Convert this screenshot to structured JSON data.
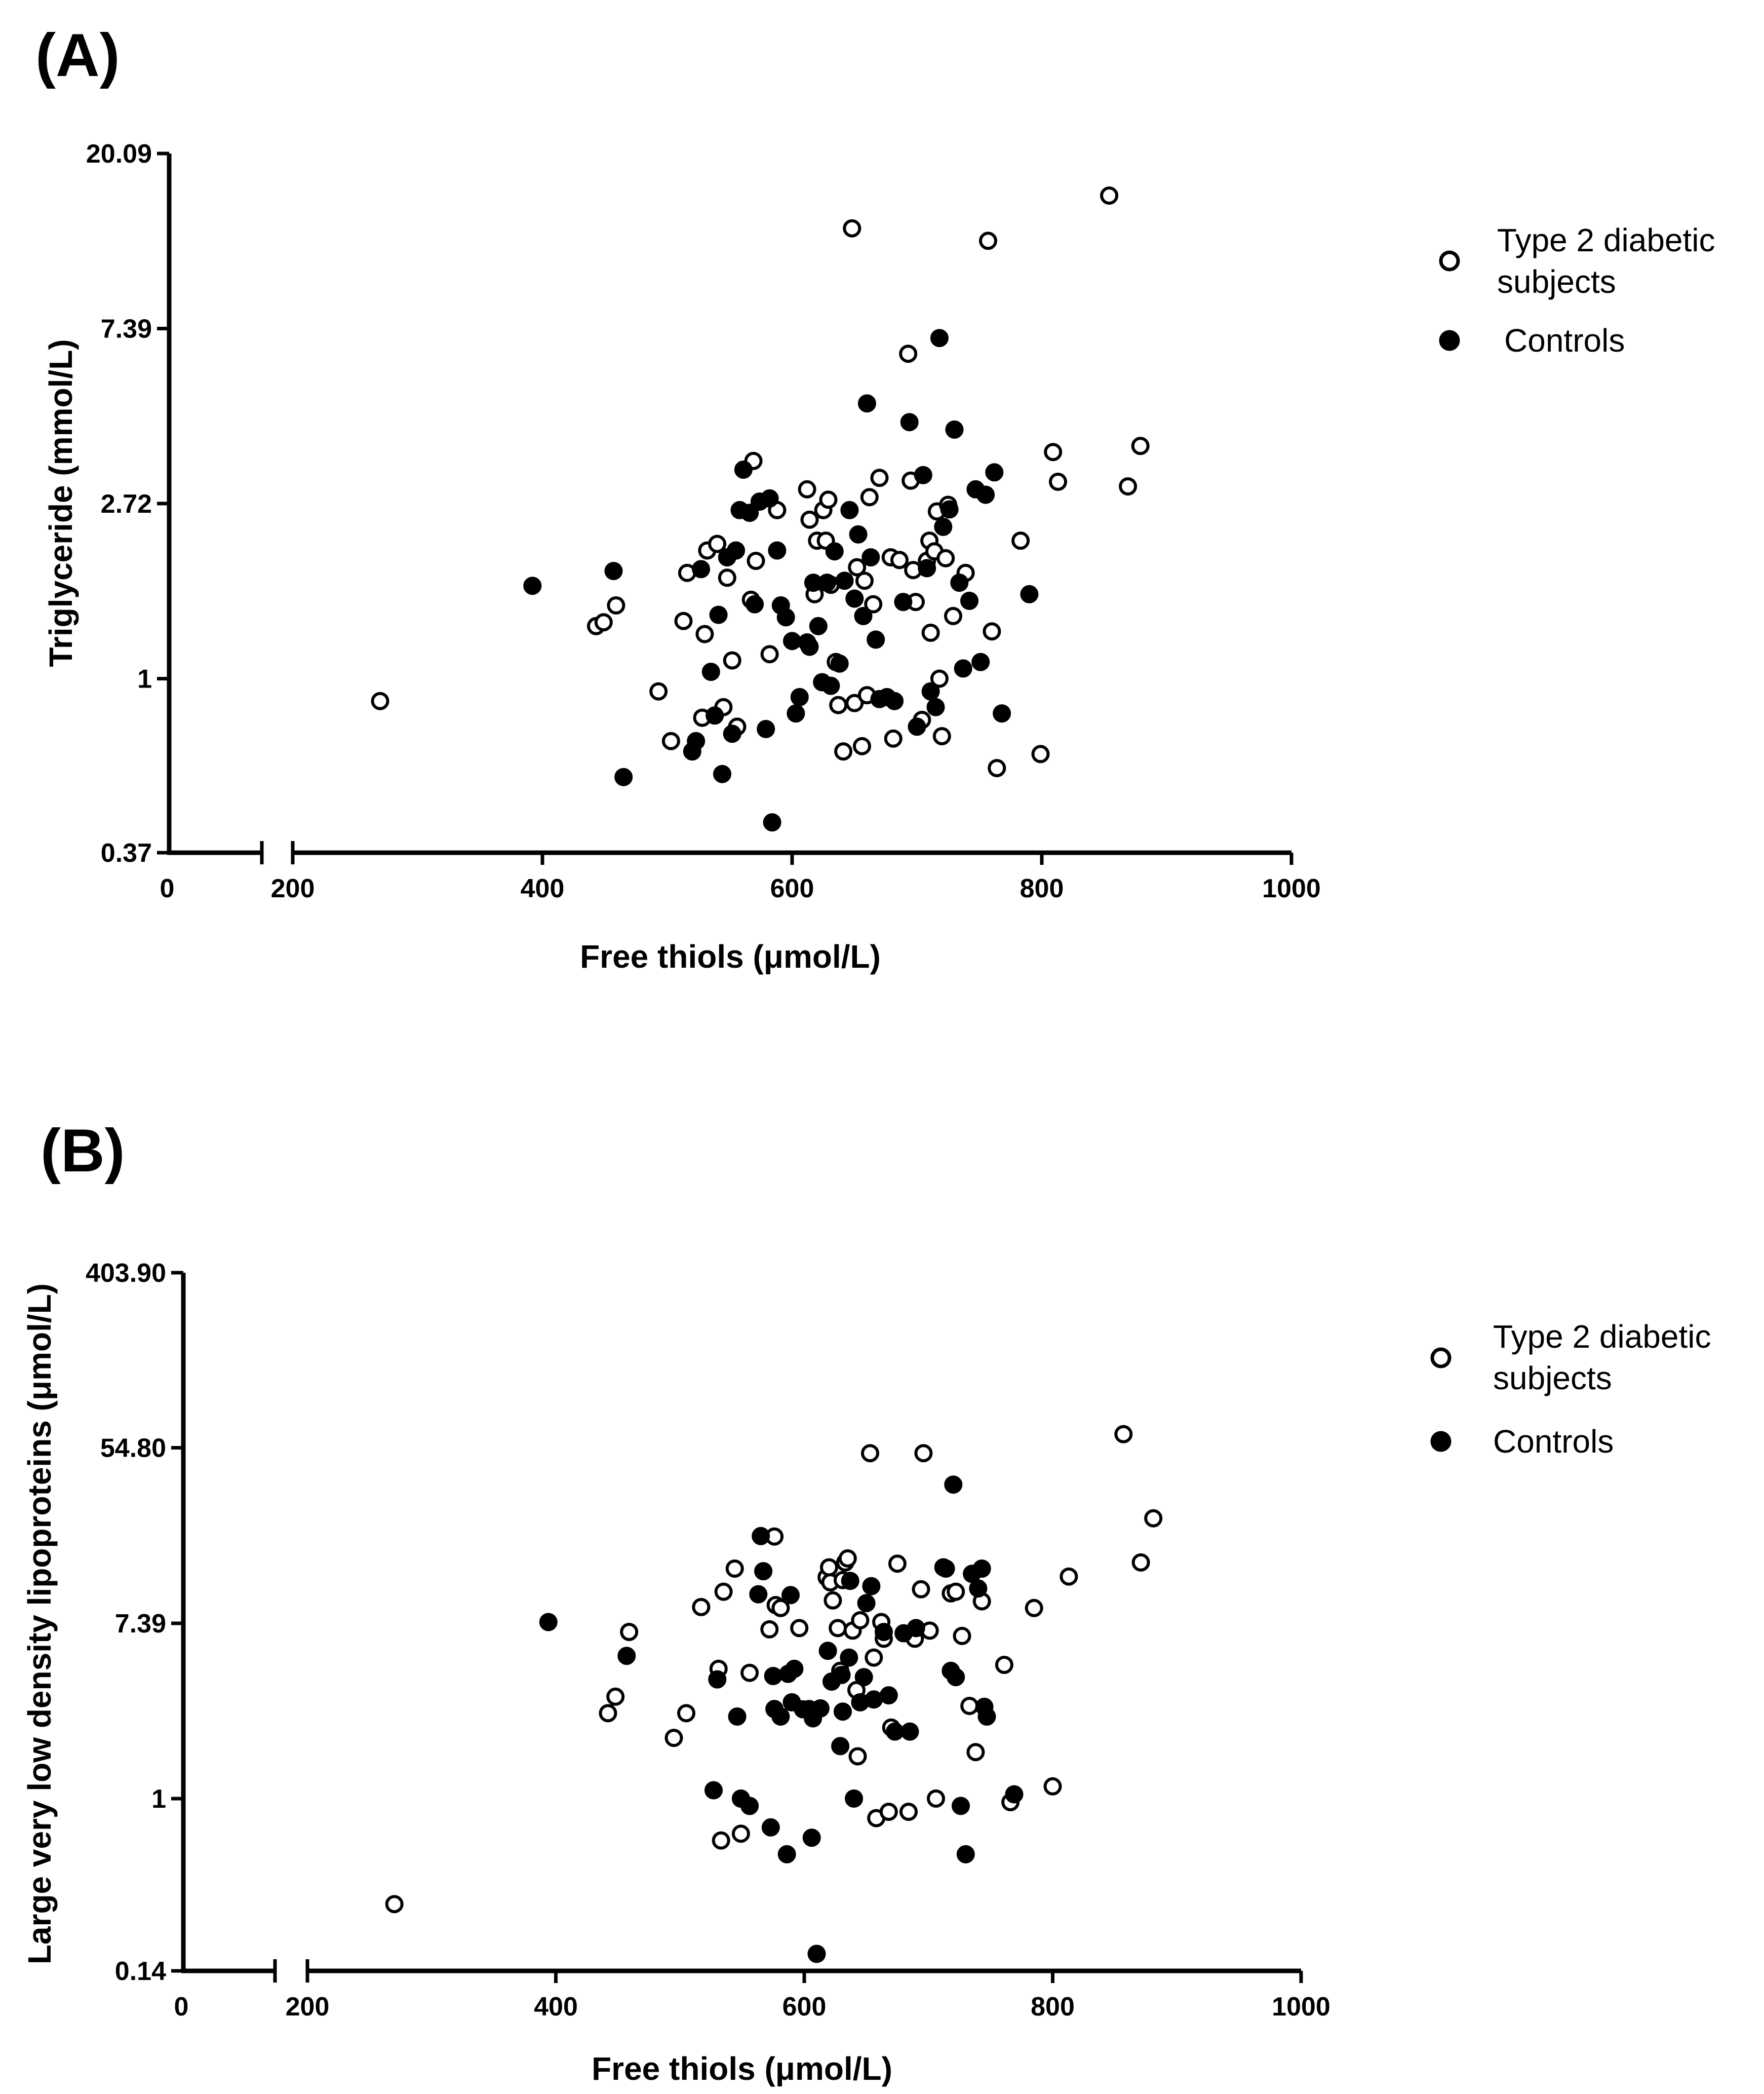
{
  "chart_data": [
    {
      "panel": "(A)",
      "type": "scatter",
      "xlabel": "Free thiols (μmol/L)",
      "ylabel": "Triglyceride (mmol/L)",
      "y_scale": "log",
      "xlim": [
        0,
        1000
      ],
      "x_break": [
        175,
        200
      ],
      "ylim": [
        0.37,
        20.09
      ],
      "x_ticks": [
        "0",
        "200",
        "400",
        "600",
        "800",
        "1000"
      ],
      "y_ticks": [
        "0.37",
        "1",
        "2.72",
        "7.39",
        "20.09"
      ],
      "y_tick_values": [
        0.37,
        1,
        2.72,
        7.39,
        20.09
      ],
      "legend": {
        "position": "right",
        "entries": [
          "Type 2 diabetic subjects",
          "Controls"
        ]
      },
      "series": [
        {
          "name": "Type 2 diabetic subjects",
          "marker": "open-circle",
          "points": [
            [
              270,
              0.88
            ],
            [
              443,
              1.35
            ],
            [
              449,
              1.38
            ],
            [
              459,
              1.52
            ],
            [
              493,
              0.93
            ],
            [
              503,
              0.7
            ],
            [
              513,
              1.39
            ],
            [
              516,
              1.83
            ],
            [
              528,
              0.8
            ],
            [
              530,
              1.29
            ],
            [
              532,
              2.08
            ],
            [
              540,
              2.16
            ],
            [
              545,
              0.85
            ],
            [
              548,
              1.78
            ],
            [
              552,
              1.11
            ],
            [
              556,
              0.76
            ],
            [
              567,
              1.57
            ],
            [
              569,
              3.47
            ],
            [
              571,
              1.96
            ],
            [
              582,
              1.15
            ],
            [
              588,
              2.62
            ],
            [
              612,
              2.95
            ],
            [
              614,
              2.48
            ],
            [
              618,
              1.62
            ],
            [
              620,
              2.2
            ],
            [
              625,
              2.62
            ],
            [
              627,
              2.2
            ],
            [
              629,
              2.78
            ],
            [
              631,
              1.71
            ],
            [
              635,
              1.1
            ],
            [
              637,
              0.86
            ],
            [
              641,
              0.66
            ],
            [
              648,
              13.1
            ],
            [
              650,
              0.87
            ],
            [
              652,
              1.89
            ],
            [
              656,
              0.68
            ],
            [
              658,
              1.75
            ],
            [
              660,
              0.91
            ],
            [
              662,
              2.82
            ],
            [
              665,
              1.53
            ],
            [
              670,
              3.15
            ],
            [
              679,
              2.0
            ],
            [
              681,
              0.71
            ],
            [
              686,
              1.97
            ],
            [
              693,
              6.4
            ],
            [
              695,
              3.1
            ],
            [
              697,
              1.86
            ],
            [
              699,
              1.55
            ],
            [
              704,
              0.79
            ],
            [
              708,
              1.96
            ],
            [
              710,
              2.2
            ],
            [
              711,
              1.3
            ],
            [
              714,
              2.07
            ],
            [
              716,
              2.6
            ],
            [
              718,
              1.0
            ],
            [
              720,
              0.72
            ],
            [
              723,
              1.99
            ],
            [
              725,
              2.7
            ],
            [
              729,
              1.43
            ],
            [
              739,
              1.83
            ],
            [
              757,
              12.2
            ],
            [
              760,
              1.31
            ],
            [
              764,
              0.6
            ],
            [
              783,
              2.2
            ],
            [
              799,
              0.65
            ],
            [
              809,
              3.65
            ],
            [
              813,
              3.08
            ],
            [
              854,
              15.8
            ],
            [
              869,
              3.0
            ],
            [
              879,
              3.78
            ]
          ]
        },
        {
          "name": "Controls",
          "marker": "filled-circle",
          "points": [
            [
              392,
              1.7
            ],
            [
              457,
              1.85
            ],
            [
              465,
              0.57
            ],
            [
              520,
              0.66
            ],
            [
              523,
              0.7
            ],
            [
              527,
              1.87
            ],
            [
              535,
              1.04
            ],
            [
              538,
              0.81
            ],
            [
              541,
              1.44
            ],
            [
              544,
              0.58
            ],
            [
              548,
              2.0
            ],
            [
              552,
              0.73
            ],
            [
              555,
              2.08
            ],
            [
              558,
              2.62
            ],
            [
              561,
              3.3
            ],
            [
              566,
              2.58
            ],
            [
              570,
              1.53
            ],
            [
              574,
              2.75
            ],
            [
              579,
              0.75
            ],
            [
              582,
              2.8
            ],
            [
              584,
              0.44
            ],
            [
              588,
              2.08
            ],
            [
              591,
              1.52
            ],
            [
              595,
              1.42
            ],
            [
              600,
              1.24
            ],
            [
              603,
              0.82
            ],
            [
              606,
              0.9
            ],
            [
              612,
              1.23
            ],
            [
              614,
              1.2
            ],
            [
              617,
              1.73
            ],
            [
              621,
              1.35
            ],
            [
              624,
              0.98
            ],
            [
              628,
              1.73
            ],
            [
              631,
              0.96
            ],
            [
              634,
              2.07
            ],
            [
              638,
              1.09
            ],
            [
              642,
              1.75
            ],
            [
              646,
              2.62
            ],
            [
              650,
              1.58
            ],
            [
              653,
              2.28
            ],
            [
              657,
              1.43
            ],
            [
              660,
              4.82
            ],
            [
              663,
              2.0
            ],
            [
              667,
              1.25
            ],
            [
              670,
              0.89
            ],
            [
              676,
              0.9
            ],
            [
              682,
              0.88
            ],
            [
              689,
              1.55
            ],
            [
              694,
              4.33
            ],
            [
              700,
              0.76
            ],
            [
              705,
              3.2
            ],
            [
              708,
              1.88
            ],
            [
              711,
              0.93
            ],
            [
              715,
              0.85
            ],
            [
              718,
              7.0
            ],
            [
              721,
              2.38
            ],
            [
              726,
              2.63
            ],
            [
              730,
              4.15
            ],
            [
              734,
              1.73
            ],
            [
              737,
              1.06
            ],
            [
              742,
              1.56
            ],
            [
              747,
              2.95
            ],
            [
              751,
              1.1
            ],
            [
              755,
              2.86
            ],
            [
              762,
              3.25
            ],
            [
              768,
              0.82
            ],
            [
              790,
              1.62
            ]
          ]
        }
      ]
    },
    {
      "panel": "(B)",
      "type": "scatter",
      "xlabel": "Free thiols (μmol/L)",
      "ylabel": "Large very low density lipoproteins (μmol/L)",
      "y_scale": "log",
      "xlim": [
        0,
        1000
      ],
      "x_break": [
        175,
        200
      ],
      "ylim": [
        0.14,
        403.9
      ],
      "x_ticks": [
        "0",
        "200",
        "400",
        "600",
        "800",
        "1000"
      ],
      "y_ticks": [
        "0.14",
        "1",
        "7.39",
        "54.80",
        "403.90"
      ],
      "y_tick_values": [
        0.14,
        1,
        7.39,
        54.8,
        403.9
      ],
      "legend": {
        "position": "right",
        "entries": [
          "Type 2 diabetic subjects",
          "Controls"
        ]
      },
      "series": [
        {
          "name": "Type 2 diabetic subjects",
          "marker": "open-circle",
          "points": [
            [
              270,
              0.3
            ],
            [
              442,
              2.65
            ],
            [
              448,
              3.2
            ],
            [
              459,
              6.7
            ],
            [
              495,
              2.0
            ],
            [
              505,
              2.65
            ],
            [
              517,
              8.9
            ],
            [
              531,
              4.4
            ],
            [
              533,
              0.62
            ],
            [
              535,
              10.6
            ],
            [
              544,
              13.8
            ],
            [
              549,
              0.67
            ],
            [
              556,
              4.2
            ],
            [
              572,
              6.9
            ],
            [
              576,
              19.9
            ],
            [
              577,
              9.1
            ],
            [
              581,
              8.8
            ],
            [
              596,
              7.0
            ],
            [
              618,
              12.5
            ],
            [
              620,
              14.0
            ],
            [
              621,
              11.8
            ],
            [
              623,
              9.6
            ],
            [
              627,
              7.0
            ],
            [
              629,
              4.3
            ],
            [
              631,
              12.1
            ],
            [
              633,
              14.8
            ],
            [
              635,
              15.5
            ],
            [
              639,
              6.8
            ],
            [
              642,
              3.45
            ],
            [
              643,
              1.62
            ],
            [
              645,
              7.65
            ],
            [
              653,
              51.5
            ],
            [
              656,
              5.0
            ],
            [
              658,
              0.8
            ],
            [
              662,
              7.5
            ],
            [
              664,
              6.2
            ],
            [
              668,
              0.86
            ],
            [
              670,
              2.25
            ],
            [
              675,
              14.6
            ],
            [
              684,
              0.86
            ],
            [
              689,
              6.2
            ],
            [
              694,
              10.9
            ],
            [
              696,
              51.5
            ],
            [
              701,
              6.8
            ],
            [
              706,
              1.0
            ],
            [
              718,
              10.4
            ],
            [
              722,
              10.6
            ],
            [
              727,
              6.4
            ],
            [
              733,
              2.88
            ],
            [
              738,
              1.7
            ],
            [
              743,
              9.5
            ],
            [
              761,
              4.6
            ],
            [
              766,
              0.96
            ],
            [
              785,
              8.8
            ],
            [
              800,
              1.15
            ],
            [
              813,
              12.6
            ],
            [
              857,
              64.0
            ],
            [
              871,
              14.8
            ],
            [
              881,
              24.5
            ]
          ]
        },
        {
          "name": "Controls",
          "marker": "filled-circle",
          "points": [
            [
              394,
              7.5
            ],
            [
              457,
              5.1
            ],
            [
              527,
              1.1
            ],
            [
              530,
              3.9
            ],
            [
              546,
              2.55
            ],
            [
              549,
              1.0
            ],
            [
              556,
              0.92
            ],
            [
              563,
              10.3
            ],
            [
              565,
              20.0
            ],
            [
              567,
              13.4
            ],
            [
              573,
              0.72
            ],
            [
              575,
              4.05
            ],
            [
              576,
              2.78
            ],
            [
              581,
              2.55
            ],
            [
              586,
              0.53
            ],
            [
              587,
              4.15
            ],
            [
              589,
              10.2
            ],
            [
              590,
              3.0
            ],
            [
              592,
              4.4
            ],
            [
              599,
              2.77
            ],
            [
              604,
              2.78
            ],
            [
              606,
              0.64
            ],
            [
              607,
              2.5
            ],
            [
              610,
              0.17
            ],
            [
              613,
              2.8
            ],
            [
              619,
              5.4
            ],
            [
              622,
              3.8
            ],
            [
              629,
              1.82
            ],
            [
              630,
              4.1
            ],
            [
              631,
              2.7
            ],
            [
              636,
              5.0
            ],
            [
              637,
              12.0
            ],
            [
              640,
              1.0
            ],
            [
              645,
              3.0
            ],
            [
              648,
              4.0
            ],
            [
              650,
              9.3
            ],
            [
              654,
              11.3
            ],
            [
              656,
              3.1
            ],
            [
              664,
              6.7
            ],
            [
              668,
              3.25
            ],
            [
              673,
              2.15
            ],
            [
              680,
              6.6
            ],
            [
              685,
              2.15
            ],
            [
              690,
              7.0
            ],
            [
              712,
              14.0
            ],
            [
              714,
              13.8
            ],
            [
              718,
              4.3
            ],
            [
              720,
              36.0
            ],
            [
              722,
              4.0
            ],
            [
              726,
              0.92
            ],
            [
              730,
              0.53
            ],
            [
              735,
              13.0
            ],
            [
              740,
              11.0
            ],
            [
              743,
              13.8
            ],
            [
              745,
              2.85
            ],
            [
              747,
              2.55
            ],
            [
              769,
              1.05
            ]
          ]
        }
      ]
    }
  ]
}
